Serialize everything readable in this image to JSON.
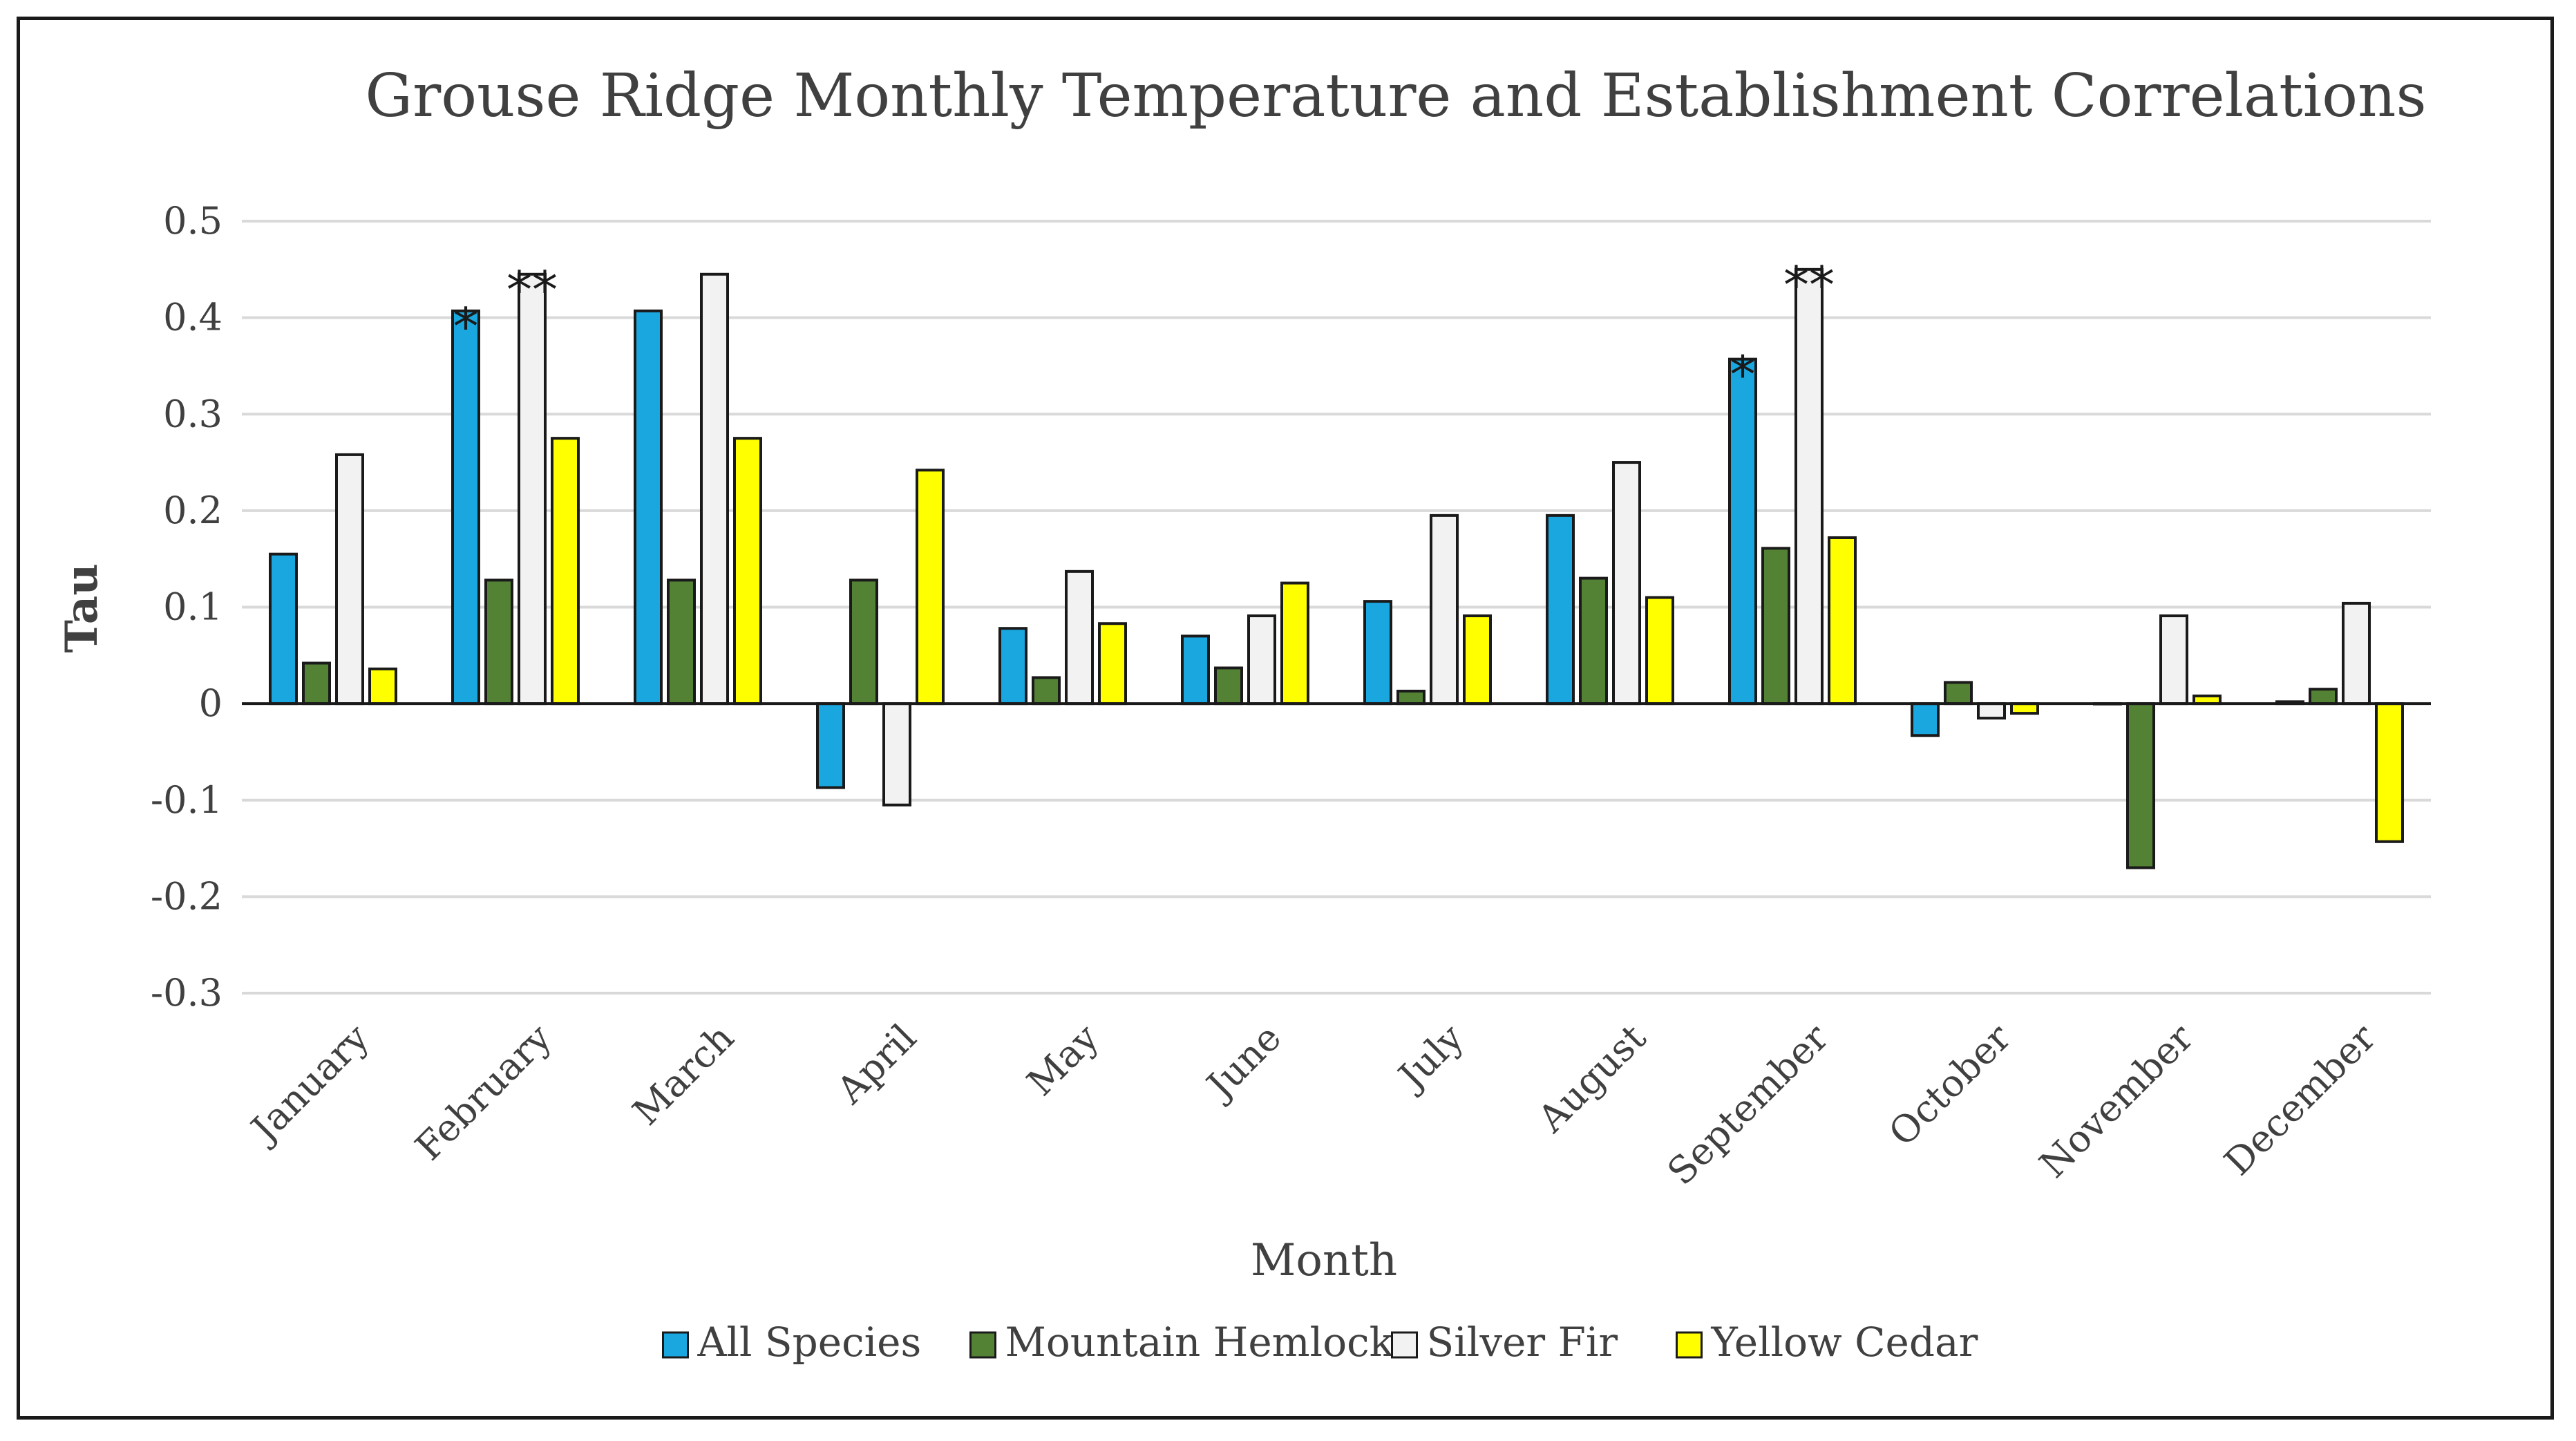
{
  "chart_data": {
    "type": "bar",
    "title": "Grouse Ridge Monthly Temperature and Establishment Correlations",
    "xlabel": "Month",
    "ylabel": "Tau",
    "ylim": [
      -0.3,
      0.5
    ],
    "yticks": [
      0.5,
      0.4,
      0.3,
      0.2,
      0.1,
      0,
      -0.1,
      -0.2,
      -0.3
    ],
    "ytick_labels": [
      "0.5",
      "0.4",
      "0.3",
      "0.2",
      "0.1",
      "0",
      "-0.1",
      "-0.2",
      "-0.3"
    ],
    "grid": true,
    "legend_position": "bottom",
    "categories": [
      "January",
      "February",
      "March",
      "April",
      "May",
      "June",
      "July",
      "August",
      "September",
      "October",
      "November",
      "December"
    ],
    "series": [
      {
        "name": "All Species",
        "color": "#1aa7e0",
        "values": [
          0.155,
          0.407,
          0.407,
          -0.087,
          0.078,
          0.07,
          0.106,
          0.195,
          0.357,
          -0.033,
          0.0,
          0.002
        ]
      },
      {
        "name": "Mountain Hemlock",
        "color": "#548235",
        "values": [
          0.042,
          0.128,
          0.128,
          0.128,
          0.027,
          0.037,
          0.013,
          0.13,
          0.161,
          0.022,
          -0.17,
          0.015
        ]
      },
      {
        "name": "Silver Fir",
        "color": "#f2f2f2",
        "values": [
          0.258,
          0.445,
          0.445,
          -0.105,
          0.137,
          0.091,
          0.195,
          0.25,
          0.45,
          -0.015,
          0.091,
          0.104
        ]
      },
      {
        "name": "Yellow Cedar",
        "color": "#ffff00",
        "values": [
          0.036,
          0.275,
          0.275,
          0.242,
          0.083,
          0.125,
          0.091,
          0.11,
          0.172,
          -0.01,
          0.008,
          -0.143
        ]
      }
    ],
    "annotations": [
      {
        "category": "February",
        "series": "All Species",
        "text": "*"
      },
      {
        "category": "February",
        "series": "Silver Fir",
        "text": "**"
      },
      {
        "category": "September",
        "series": "All Species",
        "text": "*"
      },
      {
        "category": "September",
        "series": "Silver Fir",
        "text": "**"
      }
    ]
  }
}
